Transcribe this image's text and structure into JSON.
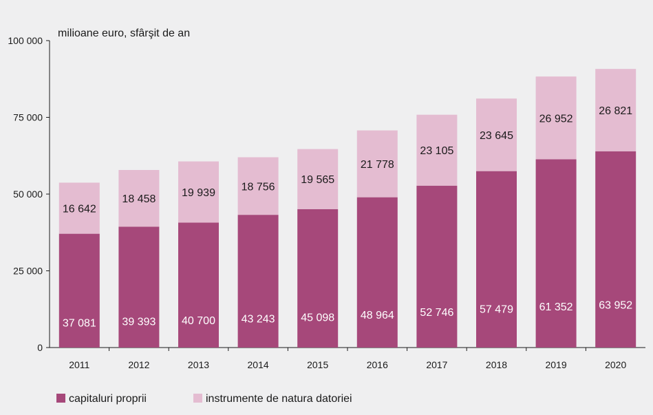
{
  "chart_data": {
    "type": "bar",
    "stacked": true,
    "unit_label": "milioane euro, sfârşit de an",
    "categories": [
      "2011",
      "2012",
      "2013",
      "2014",
      "2015",
      "2016",
      "2017",
      "2018",
      "2019",
      "2020"
    ],
    "series": [
      {
        "name": "capitaluri proprii",
        "color": "#a6487a",
        "values": [
          37081,
          39393,
          40700,
          43243,
          45098,
          48964,
          52746,
          57479,
          61352,
          63952
        ],
        "labels": [
          "37 081",
          "39 393",
          "40 700",
          "43 243",
          "45 098",
          "48 964",
          "52 746",
          "57 479",
          "61 352",
          "63 952"
        ]
      },
      {
        "name": "instrumente de natura datoriei",
        "color": "#e4bcd1",
        "values": [
          16642,
          18458,
          19939,
          18756,
          19565,
          21778,
          23105,
          23645,
          26952,
          26821
        ],
        "labels": [
          "16 642",
          "18 458",
          "19 939",
          "18 756",
          "19 565",
          "21 778",
          "23 105",
          "23 645",
          "26 952",
          "26 821"
        ]
      }
    ],
    "ylim": [
      0,
      100000
    ],
    "yticks": [
      0,
      25000,
      50000,
      75000,
      100000
    ],
    "ytick_labels": [
      "0",
      "25 000",
      "50 000",
      "75 000",
      "100 000"
    ],
    "grid": false,
    "legend_position": "bottom-left"
  }
}
